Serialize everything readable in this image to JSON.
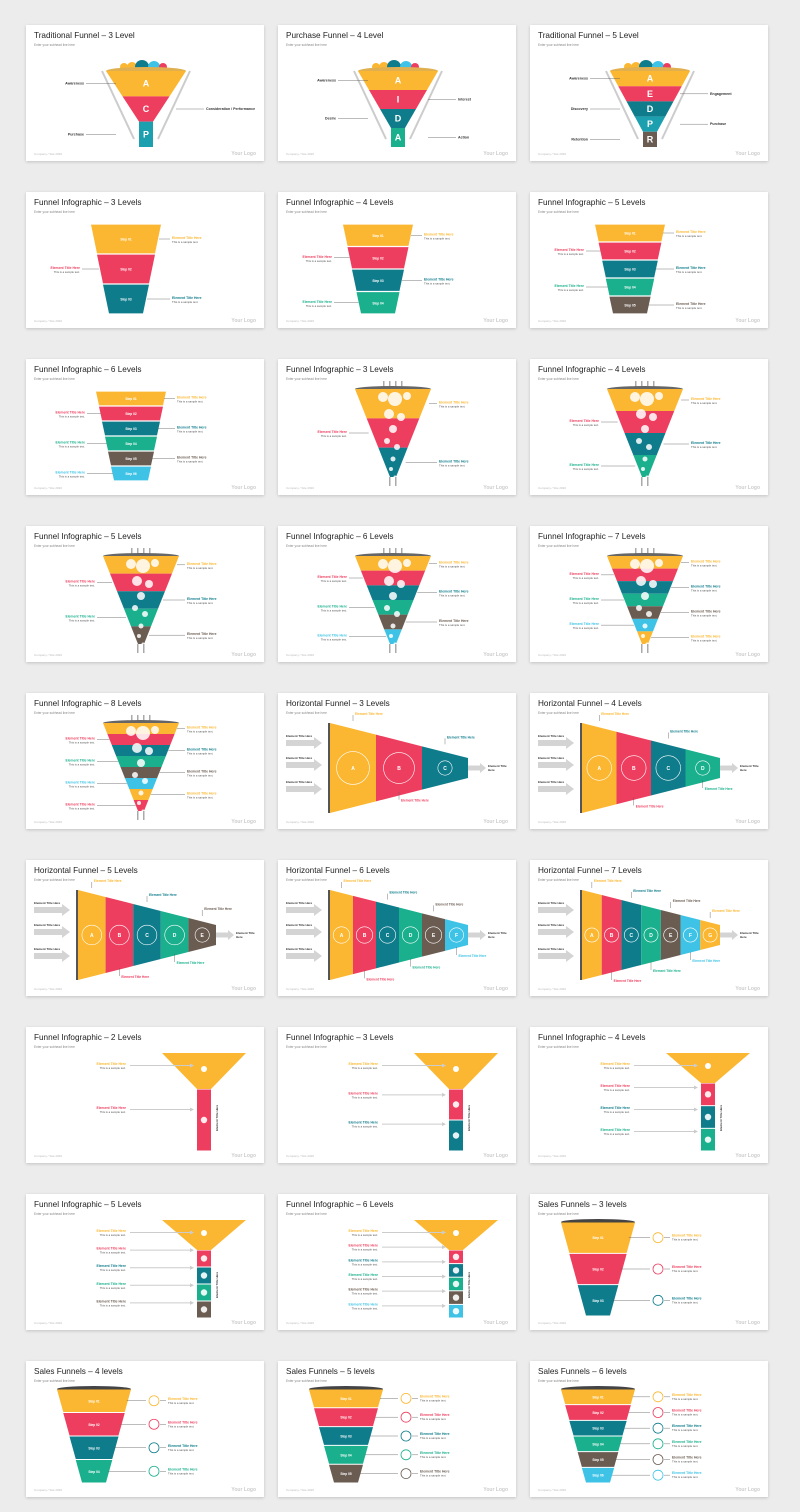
{
  "colors": {
    "yellow": "#fbb731",
    "red": "#ee3e5f",
    "teal": "#0f7c8c",
    "green": "#1ab08d",
    "brown": "#6b5c52",
    "cyan": "#3ec3e6",
    "grey": "#c8c8c8",
    "gradeTeal": "#1c9fae"
  },
  "common": {
    "subtitle": "Enter your subhead line here",
    "footer": "Company / Site 2020",
    "logo": "Your Logo",
    "element_title": "Element Title Here",
    "sample": "This is a sample text. You simply add your own text and description here.",
    "sample_short": "This is a sample text."
  },
  "slides": [
    {
      "title": "Traditional Funnel – 3 Level",
      "type": "trad",
      "letters": [
        "A",
        "C",
        "P"
      ],
      "labels": [
        "Awareness",
        "Consideration / Performance",
        "Purchase"
      ]
    },
    {
      "title": "Purchase Funnel – 4 Level",
      "type": "trad",
      "letters": [
        "A",
        "I",
        "D",
        "A"
      ],
      "labels": [
        "Awareness",
        "Interest",
        "Desire",
        "Action"
      ]
    },
    {
      "title": "Traditional Funnel – 5 Level",
      "type": "trad",
      "letters": [
        "A",
        "E",
        "D",
        "P",
        "R"
      ],
      "labels": [
        "Awareness",
        "Engagement",
        "Discovery",
        "Purchase",
        "Retention"
      ]
    },
    {
      "title": "Funnel Infographic – 3 Levels",
      "type": "steps",
      "n": 3
    },
    {
      "title": "Funnel Infographic – 4 Levels",
      "type": "steps",
      "n": 4
    },
    {
      "title": "Funnel Infographic – 5 Levels",
      "type": "steps",
      "n": 5
    },
    {
      "title": "Funnel Infographic – 6 Levels",
      "type": "steps",
      "n": 6
    },
    {
      "title": "Funnel Infographic – 3 Levels",
      "type": "balls",
      "n": 3
    },
    {
      "title": "Funnel Infographic – 4 Levels",
      "type": "balls",
      "n": 4
    },
    {
      "title": "Funnel Infographic – 5 Levels",
      "type": "balls",
      "n": 5
    },
    {
      "title": "Funnel Infographic – 6 Levels",
      "type": "balls",
      "n": 6
    },
    {
      "title": "Funnel Infographic – 7 Levels",
      "type": "balls",
      "n": 7
    },
    {
      "title": "Funnel Infographic – 8 Levels",
      "type": "balls",
      "n": 8
    },
    {
      "title": "Horizontal Funnel – 3 Levels",
      "type": "horiz",
      "n": 3
    },
    {
      "title": "Horizontal Funnel – 4 Levels",
      "type": "horiz",
      "n": 4
    },
    {
      "title": "Horizontal Funnel – 5 Levels",
      "type": "horiz",
      "n": 5
    },
    {
      "title": "Horizontal Funnel – 6 Levels",
      "type": "horiz",
      "n": 6
    },
    {
      "title": "Horizontal Funnel – 7 Levels",
      "type": "horiz",
      "n": 7
    },
    {
      "title": "Funnel Infographic – 2 Levels",
      "type": "icons",
      "n": 2
    },
    {
      "title": "Funnel Infographic – 3 Levels",
      "type": "icons",
      "n": 3
    },
    {
      "title": "Funnel Infographic – 4 Levels",
      "type": "icons",
      "n": 4
    },
    {
      "title": "Funnel Infographic – 5 Levels",
      "type": "icons",
      "n": 5
    },
    {
      "title": "Funnel Infographic – 6 Levels",
      "type": "icons",
      "n": 6
    },
    {
      "title": "Sales Funnels – 3 levels",
      "type": "sales",
      "n": 3
    },
    {
      "title": "Sales Funnels – 4 levels",
      "type": "sales",
      "n": 4
    },
    {
      "title": "Sales Funnels – 5 levels",
      "type": "sales",
      "n": 5
    },
    {
      "title": "Sales Funnels – 6 levels",
      "type": "sales",
      "n": 6
    }
  ]
}
